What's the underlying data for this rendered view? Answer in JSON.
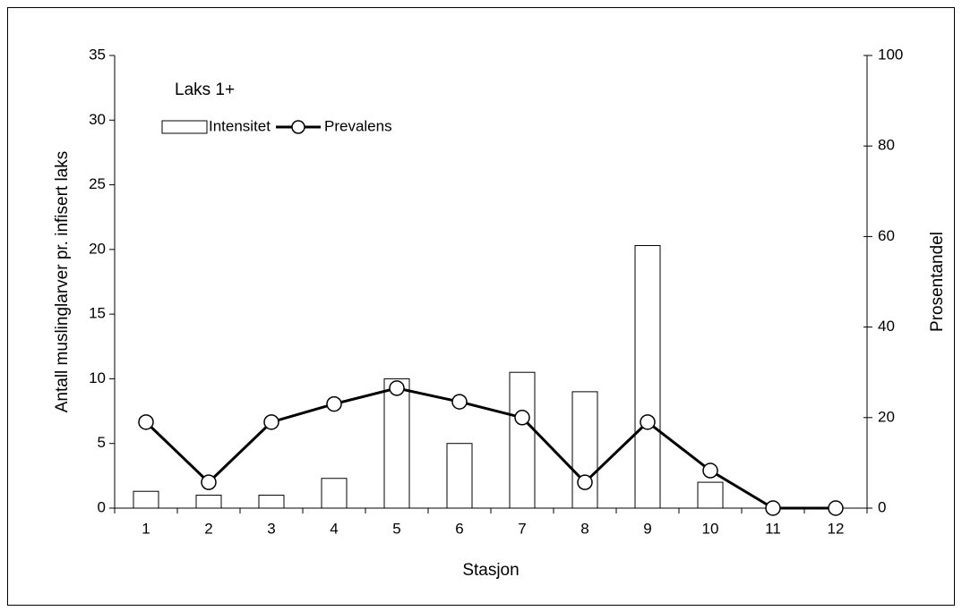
{
  "chart_data": {
    "type": "bar-line",
    "annotation": "Laks 1+",
    "xlabel": "Stasjon",
    "ylabel": "Antall muslinglarver pr. infisert laks",
    "y2label": "Prosentandel",
    "categories": [
      "1",
      "2",
      "3",
      "4",
      "5",
      "6",
      "7",
      "8",
      "9",
      "10",
      "11",
      "12"
    ],
    "series": [
      {
        "name": "Intensitet",
        "type": "bar",
        "color": "#ffffff",
        "values": [
          1.3,
          1.0,
          1.0,
          2.3,
          10,
          5,
          10.5,
          9,
          20.3,
          2,
          0,
          0
        ]
      },
      {
        "name": "Prevalens",
        "type": "line",
        "axis": "y2",
        "color": "#000000",
        "values": [
          19,
          5.7,
          19,
          23,
          26.5,
          23.5,
          20,
          5.7,
          19,
          8.3,
          0,
          0
        ]
      }
    ],
    "ylim": [
      0,
      35
    ],
    "yticks": [
      0,
      5,
      10,
      15,
      20,
      25,
      30,
      35
    ],
    "y2lim": [
      0,
      100
    ],
    "y2ticks": [
      0,
      20,
      40,
      60,
      80,
      100
    ],
    "grid": false,
    "legend": "top-left"
  }
}
